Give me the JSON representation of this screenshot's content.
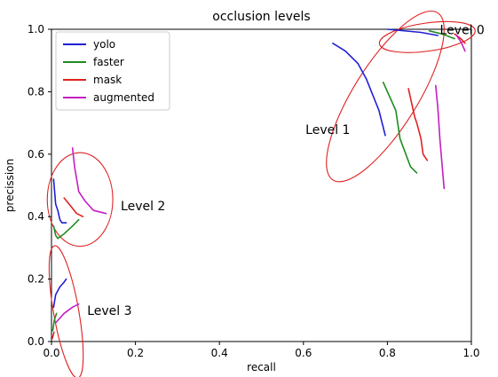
{
  "chart_data": {
    "type": "line",
    "title": "occlusion levels",
    "xlabel": "recall",
    "ylabel": "precission",
    "xlim": [
      0.0,
      1.0
    ],
    "ylim": [
      0.0,
      1.0
    ],
    "x_ticks": [
      0.0,
      0.2,
      0.4,
      0.6,
      0.8,
      1.0
    ],
    "x_tick_labels": [
      "0.0",
      "0.2",
      "0.4",
      "0.6",
      "0.8",
      "1.0"
    ],
    "y_ticks": [
      0.0,
      0.2,
      0.4,
      0.6,
      0.8,
      1.0
    ],
    "y_tick_labels": [
      "0.0",
      "0.2",
      "0.4",
      "0.6",
      "0.8",
      "1.0"
    ],
    "legend_position": "top-left",
    "grid": false,
    "series": [
      {
        "name": "yolo",
        "color": "#1f1fd6",
        "segments": [
          [
            [
              0.8,
              1.0
            ],
            [
              0.88,
              0.99
            ],
            [
              0.92,
              0.98
            ]
          ],
          [
            [
              0.67,
              0.955
            ],
            [
              0.7,
              0.93
            ],
            [
              0.73,
              0.89
            ],
            [
              0.75,
              0.84
            ],
            [
              0.78,
              0.74
            ],
            [
              0.795,
              0.66
            ]
          ],
          [
            [
              0.005,
              0.52
            ],
            [
              0.01,
              0.44
            ],
            [
              0.015,
              0.42
            ],
            [
              0.02,
              0.39
            ],
            [
              0.025,
              0.38
            ],
            [
              0.035,
              0.38
            ]
          ],
          [
            [
              0.005,
              0.11
            ],
            [
              0.01,
              0.15
            ],
            [
              0.02,
              0.175
            ],
            [
              0.03,
              0.19
            ],
            [
              0.035,
              0.2
            ]
          ]
        ]
      },
      {
        "name": "faster",
        "color": "#1f8c1f",
        "segments": [
          [
            [
              0.9,
              0.995
            ],
            [
              0.93,
              0.985
            ],
            [
              0.96,
              0.97
            ]
          ],
          [
            [
              0.79,
              0.83
            ],
            [
              0.82,
              0.74
            ],
            [
              0.83,
              0.65
            ],
            [
              0.855,
              0.56
            ],
            [
              0.87,
              0.54
            ]
          ],
          [
            [
              0.005,
              0.37
            ],
            [
              0.01,
              0.34
            ],
            [
              0.015,
              0.33
            ],
            [
              0.03,
              0.345
            ],
            [
              0.05,
              0.37
            ],
            [
              0.065,
              0.39
            ]
          ],
          [
            [
              0.003,
              0.035
            ],
            [
              0.007,
              0.07
            ],
            [
              0.012,
              0.09
            ]
          ]
        ]
      },
      {
        "name": "mask",
        "color": "#e02020",
        "segments": [
          [
            [
              0.96,
              0.985
            ],
            [
              0.975,
              0.97
            ],
            [
              0.985,
              0.955
            ]
          ],
          [
            [
              0.85,
              0.81
            ],
            [
              0.865,
              0.72
            ],
            [
              0.87,
              0.7
            ],
            [
              0.88,
              0.65
            ],
            [
              0.885,
              0.6
            ],
            [
              0.895,
              0.58
            ]
          ],
          [
            [
              0.03,
              0.46
            ],
            [
              0.045,
              0.435
            ],
            [
              0.06,
              0.41
            ],
            [
              0.075,
              0.4
            ]
          ],
          [
            [
              0.002,
              0.01
            ],
            [
              0.004,
              0.02
            ],
            [
              0.006,
              0.03
            ]
          ]
        ]
      },
      {
        "name": "augmented",
        "color": "#c31fc3",
        "segments": [
          [
            [
              0.965,
              0.98
            ],
            [
              0.975,
              0.96
            ],
            [
              0.985,
              0.93
            ]
          ],
          [
            [
              0.915,
              0.82
            ],
            [
              0.92,
              0.75
            ],
            [
              0.925,
              0.65
            ],
            [
              0.93,
              0.57
            ],
            [
              0.935,
              0.49
            ]
          ],
          [
            [
              0.05,
              0.62
            ],
            [
              0.055,
              0.56
            ],
            [
              0.065,
              0.48
            ],
            [
              0.08,
              0.45
            ],
            [
              0.1,
              0.42
            ],
            [
              0.13,
              0.41
            ]
          ],
          [
            [
              0.01,
              0.06
            ],
            [
              0.03,
              0.09
            ],
            [
              0.05,
              0.11
            ],
            [
              0.065,
              0.12
            ]
          ]
        ]
      }
    ],
    "annotations": [
      {
        "text": "Level 0",
        "x": 0.925,
        "y": 0.985
      },
      {
        "text": "Level 1",
        "x": 0.605,
        "y": 0.665
      },
      {
        "text": "Level 2",
        "x": 0.165,
        "y": 0.42
      },
      {
        "text": "Level 3",
        "x": 0.085,
        "y": 0.085
      }
    ],
    "highlight_ellipses": [
      {
        "color": "#e02020",
        "cx": 0.895,
        "cy": 0.975,
        "rx": 0.115,
        "ry": 0.045,
        "rotate_deg": 8
      },
      {
        "color": "#e02020",
        "cx": 0.795,
        "cy": 0.785,
        "rx": 0.235,
        "ry": 0.102,
        "rotate_deg": 58
      },
      {
        "color": "#e02020",
        "cx": 0.068,
        "cy": 0.455,
        "rx": 0.078,
        "ry": 0.15,
        "rotate_deg": 0
      },
      {
        "color": "#e02020",
        "cx": 0.035,
        "cy": 0.095,
        "rx": 0.03,
        "ry": 0.215,
        "rotate_deg": 10
      }
    ]
  }
}
